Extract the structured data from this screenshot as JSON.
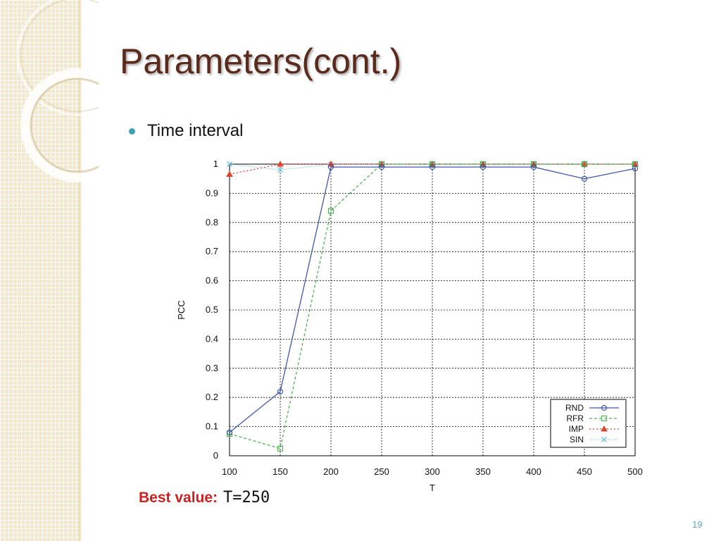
{
  "slide": {
    "title": "Parameters(cont.)",
    "bullet": "Time interval",
    "best_label": "Best value:",
    "best_value": "T=250",
    "page_number": "19"
  },
  "colors": {
    "title": "#5a2a1d",
    "bullet": "#3aa3b5",
    "best_label": "#cc2222",
    "sidebar": "#f3e7c5"
  },
  "chart_data": {
    "type": "line",
    "xlabel": "T",
    "ylabel": "PCC",
    "x": [
      100,
      150,
      200,
      250,
      300,
      350,
      400,
      450,
      500
    ],
    "xlim": [
      100,
      500
    ],
    "ylim": [
      0,
      1
    ],
    "xticks": [
      "100",
      "150",
      "200",
      "250",
      "300",
      "350",
      "400",
      "450",
      "500"
    ],
    "yticks": [
      "0",
      "0.1",
      "0.2",
      "0.3",
      "0.4",
      "0.5",
      "0.6",
      "0.7",
      "0.8",
      "0.9",
      "1"
    ],
    "grid": true,
    "legend_position": "bottom-right",
    "series": [
      {
        "name": "RND",
        "color": "#3f57a8",
        "dash": "",
        "marker": "circle",
        "values": [
          0.08,
          0.22,
          0.99,
          0.99,
          0.99,
          0.99,
          0.99,
          0.95,
          0.985
        ]
      },
      {
        "name": "RFR",
        "color": "#4fb34f",
        "dash": "4,3",
        "marker": "square",
        "values": [
          0.075,
          0.025,
          0.84,
          1.0,
          1.0,
          1.0,
          1.0,
          1.0,
          1.0
        ]
      },
      {
        "name": "IMP",
        "color": "#e0432b",
        "dash": "2,3",
        "marker": "triangle",
        "values": [
          0.965,
          1.0,
          1.0,
          1.0,
          1.0,
          1.0,
          1.0,
          1.0,
          1.0
        ]
      },
      {
        "name": "SIN",
        "color": "#6cc6e3",
        "dash": "1,2",
        "marker": "cross",
        "values": [
          1.0,
          0.98,
          1.0,
          1.0,
          1.0,
          1.0,
          1.0,
          1.0,
          1.0
        ]
      }
    ]
  }
}
